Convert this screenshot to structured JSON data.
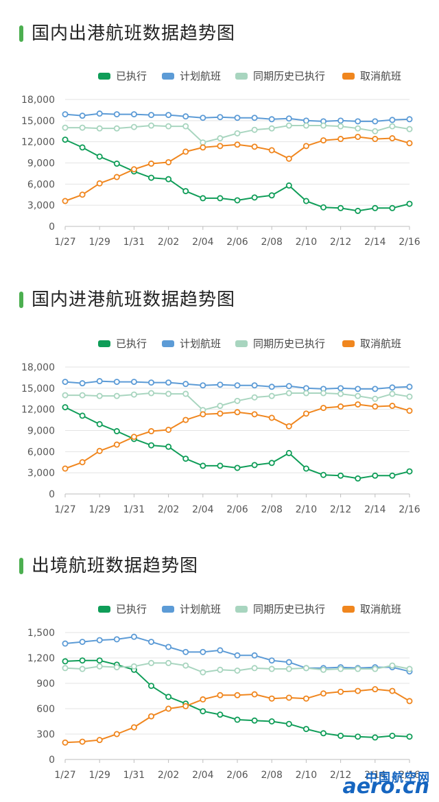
{
  "colors": {
    "executed": "#0f9d58",
    "planned": "#5c9bd6",
    "historical": "#a8d5bf",
    "cancelled": "#f0861e",
    "accent": "#4caf50"
  },
  "watermark": {
    "cn": "中国航空网",
    "en": "aero.cn"
  },
  "charts": [
    {
      "title": "国内出港航班数据趋势图",
      "chart_data": {
        "type": "line",
        "title": "国内出港航班数据趋势图",
        "categories": [
          "1/27",
          "1/28",
          "1/29",
          "1/30",
          "1/31",
          "2/01",
          "2/02",
          "2/03",
          "2/04",
          "2/05",
          "2/06",
          "2/07",
          "2/08",
          "2/09",
          "2/10",
          "2/11",
          "2/12",
          "2/13",
          "2/14",
          "2/15",
          "2/16"
        ],
        "x_tick_labels": [
          "1/27",
          "1/29",
          "1/31",
          "2/02",
          "2/04",
          "2/06",
          "2/08",
          "2/10",
          "2/12",
          "2/14",
          "2/16"
        ],
        "y_tick_labels": [
          "0",
          "3,000",
          "6,000",
          "9,000",
          "12,000",
          "15,000",
          "18,000"
        ],
        "ylim": [
          0,
          18000
        ],
        "grid": true,
        "legend": "top-right",
        "series": [
          {
            "name": "已执行",
            "color": "#0f9d58",
            "values": [
              12300,
              11200,
              9900,
              8900,
              7800,
              6900,
              6700,
              5000,
              4000,
              4000,
              3700,
              4100,
              4400,
              5800,
              3600,
              2700,
              2600,
              2200,
              2600,
              2600,
              3200
            ]
          },
          {
            "name": "计划航班",
            "color": "#5c9bd6",
            "values": [
              15900,
              15700,
              16000,
              15900,
              15900,
              15800,
              15800,
              15600,
              15400,
              15500,
              15400,
              15400,
              15200,
              15300,
              15000,
              14900,
              15000,
              14900,
              14900,
              15100,
              15200
            ]
          },
          {
            "name": "同期历史已执行",
            "color": "#a8d5bf",
            "values": [
              14000,
              14000,
              13900,
              13900,
              14100,
              14300,
              14200,
              14200,
              11900,
              12500,
              13200,
              13700,
              13900,
              14300,
              14300,
              14300,
              14200,
              13900,
              13500,
              14200,
              13800
            ]
          },
          {
            "name": "取消航班",
            "color": "#f0861e",
            "values": [
              3600,
              4500,
              6100,
              7000,
              8100,
              8900,
              9100,
              10600,
              11200,
              11400,
              11600,
              11300,
              10800,
              9600,
              11400,
              12200,
              12400,
              12700,
              12400,
              12500,
              11800
            ]
          }
        ]
      }
    },
    {
      "title": "国内进港航班数据趋势图",
      "chart_data": {
        "type": "line",
        "title": "国内进港航班数据趋势图",
        "categories": [
          "1/27",
          "1/28",
          "1/29",
          "1/30",
          "1/31",
          "2/01",
          "2/02",
          "2/03",
          "2/04",
          "2/05",
          "2/06",
          "2/07",
          "2/08",
          "2/09",
          "2/10",
          "2/11",
          "2/12",
          "2/13",
          "2/14",
          "2/15",
          "2/16"
        ],
        "x_tick_labels": [
          "1/27",
          "1/29",
          "1/31",
          "2/02",
          "2/04",
          "2/06",
          "2/08",
          "2/10",
          "2/12",
          "2/14",
          "2/16"
        ],
        "y_tick_labels": [
          "0",
          "3,000",
          "6,000",
          "9,000",
          "12,000",
          "15,000",
          "18,000"
        ],
        "ylim": [
          0,
          18000
        ],
        "grid": true,
        "legend": "top-right",
        "series": [
          {
            "name": "已执行",
            "color": "#0f9d58",
            "values": [
              12300,
              11100,
              9900,
              8900,
              7800,
              6900,
              6700,
              5000,
              4000,
              4000,
              3700,
              4100,
              4400,
              5800,
              3600,
              2700,
              2600,
              2200,
              2600,
              2600,
              3200
            ]
          },
          {
            "name": "计划航班",
            "color": "#5c9bd6",
            "values": [
              15900,
              15700,
              16000,
              15900,
              15900,
              15800,
              15800,
              15600,
              15400,
              15500,
              15400,
              15400,
              15200,
              15300,
              15000,
              14900,
              15000,
              14900,
              14900,
              15100,
              15200
            ]
          },
          {
            "name": "同期历史已执行",
            "color": "#a8d5bf",
            "values": [
              14000,
              14000,
              13900,
              13900,
              14100,
              14300,
              14200,
              14200,
              11900,
              12500,
              13200,
              13700,
              13900,
              14300,
              14300,
              14300,
              14200,
              13900,
              13500,
              14200,
              13800
            ]
          },
          {
            "name": "取消航班",
            "color": "#f0861e",
            "values": [
              3600,
              4500,
              6100,
              7000,
              8100,
              8900,
              9100,
              10500,
              11300,
              11400,
              11600,
              11300,
              10800,
              9600,
              11400,
              12200,
              12400,
              12700,
              12400,
              12500,
              11800
            ]
          }
        ]
      }
    },
    {
      "title": "出境航班数据趋势图",
      "chart_data": {
        "type": "line",
        "title": "出境航班数据趋势图",
        "categories": [
          "1/27",
          "1/28",
          "1/29",
          "1/30",
          "1/31",
          "2/01",
          "2/02",
          "2/03",
          "2/04",
          "2/05",
          "2/06",
          "2/07",
          "2/08",
          "2/09",
          "2/10",
          "2/11",
          "2/12",
          "2/13",
          "2/14",
          "2/15",
          "2/16"
        ],
        "x_tick_labels": [
          "1/27",
          "1/29",
          "1/31",
          "2/02",
          "2/04",
          "2/06",
          "2/08",
          "2/10",
          "2/12",
          "2/14",
          "2/16"
        ],
        "y_tick_labels": [
          "0",
          "300",
          "600",
          "900",
          "1,200",
          "1,500"
        ],
        "ylim": [
          0,
          1500
        ],
        "grid": true,
        "legend": "top-right",
        "series": [
          {
            "name": "已执行",
            "color": "#0f9d58",
            "values": [
              1160,
              1170,
              1170,
              1120,
              1060,
              870,
              740,
              660,
              570,
              530,
              470,
              460,
              450,
              420,
              360,
              310,
              280,
              270,
              260,
              280,
              270
            ]
          },
          {
            "name": "计划航班",
            "color": "#5c9bd6",
            "values": [
              1370,
              1390,
              1410,
              1420,
              1450,
              1390,
              1330,
              1270,
              1270,
              1290,
              1230,
              1230,
              1170,
              1150,
              1080,
              1080,
              1090,
              1080,
              1090,
              1090,
              1040
            ]
          },
          {
            "name": "同期历史已执行",
            "color": "#a8d5bf",
            "values": [
              1080,
              1070,
              1100,
              1090,
              1100,
              1140,
              1140,
              1110,
              1030,
              1060,
              1050,
              1080,
              1070,
              1070,
              1080,
              1060,
              1070,
              1070,
              1070,
              1110,
              1070
            ]
          },
          {
            "name": "取消航班",
            "color": "#f0861e",
            "values": [
              200,
              210,
              230,
              300,
              380,
              510,
              600,
              630,
              710,
              760,
              760,
              770,
              720,
              730,
              720,
              780,
              800,
              810,
              830,
              810,
              690
            ]
          }
        ]
      }
    }
  ]
}
